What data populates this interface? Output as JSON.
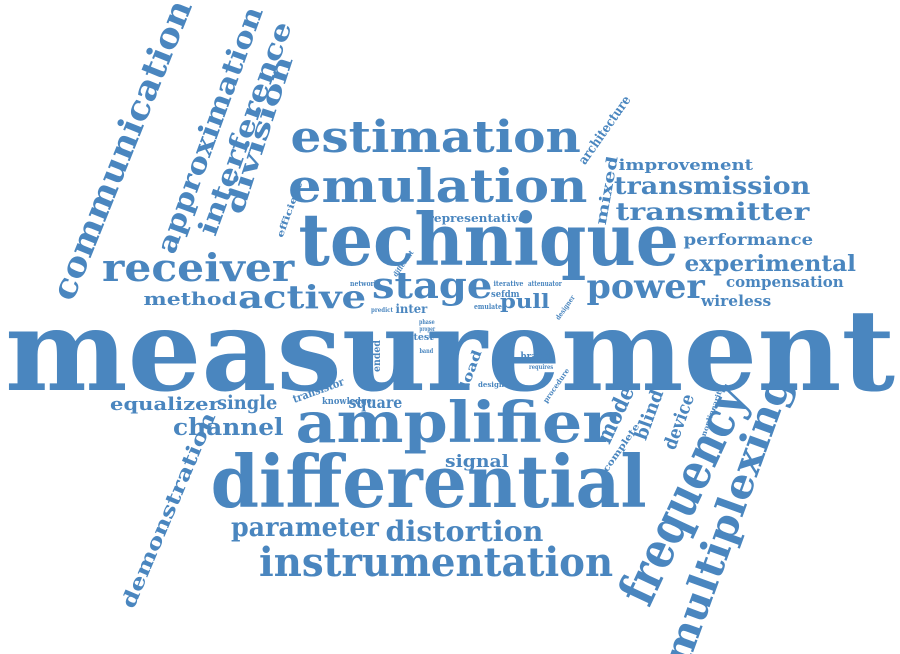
{
  "colors": {
    "word": "#4a86bf",
    "background": "#ffffff"
  },
  "words": [
    "measurement",
    "technique",
    "differential",
    "amplifier",
    "emulation",
    "estimation",
    "instrumentation",
    "frequency",
    "multiplexing",
    "receiver",
    "stage",
    "power",
    "active",
    "communication",
    "approximation",
    "interference",
    "division",
    "transmission",
    "transmitter",
    "experimental",
    "performance",
    "improvement",
    "compensation",
    "wireless",
    "pull",
    "method",
    "parameter",
    "distortion",
    "channel",
    "single",
    "equalizer",
    "demonstration",
    "signal",
    "mode",
    "blind",
    "device",
    "square",
    "architecture",
    "mixed",
    "representative",
    "efficient",
    "transistor",
    "knowledge",
    "load",
    "branch",
    "test",
    "ended",
    "inter",
    "network",
    "iterative",
    "attenuator",
    "sefdm",
    "emulate",
    "design",
    "complete",
    "procedure",
    "nonlinearity",
    "designer",
    "requires",
    "different",
    "predict",
    "phase",
    "proper",
    "band"
  ]
}
